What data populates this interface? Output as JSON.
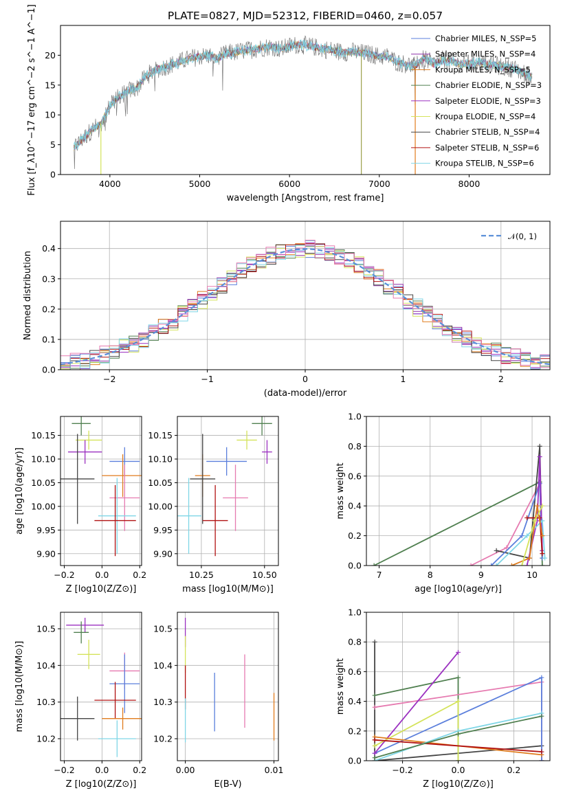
{
  "colors": {
    "chabrier_miles": "#5b7fdc",
    "salpeter_miles": "#8e2fa8",
    "kroupa_miles": "#e07b1c",
    "chabrier_elodie": "#4f7f4f",
    "salpeter_elodie": "#9b30c0",
    "kroupa_elodie": "#d4e35a",
    "chabrier_stelib": "#444444",
    "salpeter_stelib": "#b01010",
    "kroupa_stelib": "#7fd6e6",
    "pink": "#e67ab0",
    "normal": "#5b8fd8"
  },
  "chart_data": [
    {
      "id": "spectrum",
      "type": "line",
      "title": "PLATE=0827, MJD=52312, FIBERID=0460, z=0.057",
      "xlabel": "wavelength [Angstrom, rest frame]",
      "ylabel": "Flux [f_λ10^−17 erg cm^−2 s^−1 A^−1]",
      "xlim": [
        3450,
        8900
      ],
      "ylim": [
        0,
        25
      ],
      "xticks": [
        4000,
        5000,
        6000,
        7000,
        8000
      ],
      "yticks": [
        0,
        5,
        10,
        15,
        20
      ],
      "legend_position": "top-right",
      "legend": [
        {
          "label": "Chabrier MILES, N_SSP=5",
          "color": "#5b7fdc"
        },
        {
          "label": "Salpeter MILES, N_SSP=4",
          "color": "#8e2fa8"
        },
        {
          "label": "Kroupa MILES, N_SSP=5",
          "color": "#e07b1c"
        },
        {
          "label": "Chabrier ELODIE, N_SSP=3",
          "color": "#4f7f4f"
        },
        {
          "label": "Salpeter ELODIE, N_SSP=3",
          "color": "#9b30c0"
        },
        {
          "label": "Kroupa ELODIE, N_SSP=4",
          "color": "#d4e35a"
        },
        {
          "label": "Chabrier STELIB, N_SSP=4",
          "color": "#444444"
        },
        {
          "label": "Salpeter STELIB, N_SSP=6",
          "color": "#b01010"
        },
        {
          "label": "Kroupa STELIB, N_SSP=6",
          "color": "#7fd6e6"
        }
      ],
      "continuum": [
        [
          3600,
          4.5
        ],
        [
          3700,
          6.0
        ],
        [
          3800,
          7.5
        ],
        [
          3900,
          8.5
        ],
        [
          4000,
          11.5
        ],
        [
          4100,
          13.0
        ],
        [
          4200,
          14.0
        ],
        [
          4300,
          14.5
        ],
        [
          4400,
          16.5
        ],
        [
          4500,
          17.5
        ],
        [
          4600,
          18.0
        ],
        [
          4700,
          18.5
        ],
        [
          4800,
          19.0
        ],
        [
          4900,
          19.5
        ],
        [
          5000,
          19.8
        ],
        [
          5100,
          20.0
        ],
        [
          5200,
          19.5
        ],
        [
          5300,
          20.3
        ],
        [
          5400,
          20.5
        ],
        [
          5500,
          20.8
        ],
        [
          5600,
          21.0
        ],
        [
          5700,
          21.3
        ],
        [
          5800,
          21.5
        ],
        [
          5900,
          21.0
        ],
        [
          6000,
          21.5
        ],
        [
          6100,
          21.8
        ],
        [
          6200,
          21.6
        ],
        [
          6300,
          21.3
        ],
        [
          6400,
          21.0
        ],
        [
          6500,
          20.8
        ],
        [
          6600,
          20.5
        ],
        [
          6700,
          20.6
        ],
        [
          6800,
          20.4
        ],
        [
          6900,
          20.2
        ],
        [
          7000,
          19.8
        ],
        [
          7100,
          19.8
        ],
        [
          7200,
          18.8
        ],
        [
          7300,
          18.5
        ],
        [
          7400,
          18.2
        ],
        [
          7500,
          19.5
        ],
        [
          7600,
          18.5
        ],
        [
          7700,
          19.2
        ],
        [
          7800,
          19.0
        ],
        [
          7900,
          18.5
        ],
        [
          8000,
          18.6
        ],
        [
          8100,
          18.8
        ],
        [
          8200,
          18.5
        ],
        [
          8300,
          18.3
        ],
        [
          8400,
          18.0
        ],
        [
          8500,
          17.8
        ],
        [
          8600,
          17.0
        ],
        [
          8700,
          16.5
        ]
      ]
    },
    {
      "id": "residuals",
      "type": "histogram",
      "xlabel": "(data-model)/error",
      "ylabel": "Normed distribution",
      "xlim": [
        -2.5,
        2.5
      ],
      "ylim": [
        0,
        0.49
      ],
      "xticks": [
        -2,
        -1,
        0,
        1,
        2
      ],
      "yticks": [
        0.0,
        0.1,
        0.2,
        0.3,
        0.4
      ],
      "legend_position": "top-right",
      "legend": [
        {
          "label": "𝒩(0, 1)",
          "color": "#5b8fd8"
        }
      ]
    },
    {
      "id": "age-vs-Z",
      "type": "scatter",
      "xlabel": "Z [log10(Z/Z⊙)]",
      "ylabel": "age  [log10(age/yr)]",
      "xlim": [
        -0.22,
        0.21
      ],
      "ylim": [
        9.875,
        10.19
      ],
      "xticks": [
        -0.2,
        0.0,
        0.2
      ],
      "xticklabels": [
        "−0.2",
        "0.0",
        "0.2"
      ],
      "yticks": [
        9.9,
        9.95,
        10.0,
        10.05,
        10.1,
        10.15
      ],
      "yticklabels": [
        "9.90",
        "9.95",
        "10.00",
        "10.05",
        "10.10",
        "10.15"
      ],
      "points": [
        {
          "x": -0.11,
          "xerr": 0.05,
          "y": 10.175,
          "yerr": 0.025,
          "color": "#4f7f4f"
        },
        {
          "x": -0.07,
          "xerr": 0.07,
          "y": 10.14,
          "yerr": 0.02,
          "color": "#d4e35a"
        },
        {
          "x": -0.09,
          "xerr": 0.09,
          "y": 10.115,
          "yerr": 0.025,
          "color": "#9b30c0"
        },
        {
          "x": 0.12,
          "xerr": 0.08,
          "y": 10.095,
          "yerr": 0.03,
          "color": "#5b7fdc"
        },
        {
          "x": 0.11,
          "xerr": 0.11,
          "y": 10.065,
          "yerr": 0.045,
          "color": "#e07b1c"
        },
        {
          "x": -0.13,
          "xerr": 0.09,
          "y": 10.058,
          "yerr": 0.095,
          "color": "#444444"
        },
        {
          "x": 0.12,
          "xerr": 0.08,
          "y": 10.018,
          "yerr": 0.07,
          "color": "#e67ab0"
        },
        {
          "x": 0.08,
          "xerr": 0.1,
          "y": 9.98,
          "yerr": 0.08,
          "color": "#7fd6e6"
        },
        {
          "x": 0.07,
          "xerr": 0.11,
          "y": 9.97,
          "yerr": 0.075,
          "color": "#b01010"
        }
      ]
    },
    {
      "id": "age-vs-mass",
      "type": "scatter",
      "xlabel": "mass [log10(M/M⊙)]",
      "ylabel": "",
      "xlim": [
        10.155,
        10.555
      ],
      "ylim": [
        9.875,
        10.19
      ],
      "xticks": [
        10.25,
        10.5
      ],
      "xticklabels": [
        "10.25",
        "10.50"
      ],
      "yticks": [
        9.9,
        9.95,
        10.0,
        10.05,
        10.1,
        10.15
      ],
      "yticklabels": [
        "9.90",
        "9.95",
        "10.00",
        "10.05",
        "10.10",
        "10.15"
      ],
      "points": [
        {
          "x": 10.49,
          "xerr": 0.04,
          "y": 10.175,
          "yerr": 0.025,
          "color": "#4f7f4f"
        },
        {
          "x": 10.43,
          "xerr": 0.04,
          "y": 10.14,
          "yerr": 0.02,
          "color": "#d4e35a"
        },
        {
          "x": 10.51,
          "xerr": 0.02,
          "y": 10.115,
          "yerr": 0.025,
          "color": "#9b30c0"
        },
        {
          "x": 10.35,
          "xerr": 0.08,
          "y": 10.095,
          "yerr": 0.03,
          "color": "#5b7fdc"
        },
        {
          "x": 10.255,
          "xerr": 0.03,
          "y": 10.065,
          "yerr": 0.045,
          "color": "#e07b1c"
        },
        {
          "x": 10.255,
          "xerr": 0.05,
          "y": 10.058,
          "yerr": 0.095,
          "color": "#444444"
        },
        {
          "x": 10.385,
          "xerr": 0.05,
          "y": 10.018,
          "yerr": 0.07,
          "color": "#e67ab0"
        },
        {
          "x": 10.2,
          "xerr": 0.05,
          "y": 9.98,
          "yerr": 0.08,
          "color": "#7fd6e6"
        },
        {
          "x": 10.305,
          "xerr": 0.05,
          "y": 9.97,
          "yerr": 0.075,
          "color": "#b01010"
        }
      ]
    },
    {
      "id": "weight-vs-age",
      "type": "line",
      "xlabel": "age  [log10(age/yr)]",
      "ylabel": "mass weight",
      "xlim": [
        6.75,
        10.35
      ],
      "ylim": [
        0,
        1
      ],
      "xticks": [
        7,
        8,
        9,
        10
      ],
      "yticks": [
        0.0,
        0.2,
        0.4,
        0.6,
        0.8,
        1.0
      ],
      "yticklabels": [
        "0.0",
        "0.2",
        "0.4",
        "0.6",
        "0.8",
        "1.0"
      ],
      "series": [
        {
          "color": "#4f7f4f",
          "points": [
            [
              6.9,
              0.0
            ],
            [
              10.15,
              0.56
            ],
            [
              10.2,
              0.0
            ]
          ]
        },
        {
          "color": "#e67ab0",
          "points": [
            [
              8.8,
              0.0
            ],
            [
              9.5,
              0.12
            ],
            [
              10.15,
              0.55
            ],
            [
              10.2,
              0.1
            ]
          ]
        },
        {
          "color": "#444444",
          "points": [
            [
              9.3,
              0.1
            ],
            [
              9.95,
              0.05
            ],
            [
              10.15,
              0.8
            ],
            [
              10.2,
              0.05
            ]
          ]
        },
        {
          "color": "#5b7fdc",
          "points": [
            [
              9.2,
              0.0
            ],
            [
              9.8,
              0.2
            ],
            [
              10.15,
              0.55
            ],
            [
              10.2,
              0.05
            ]
          ]
        },
        {
          "color": "#9b30c0",
          "points": [
            [
              9.9,
              0.0
            ],
            [
              10.1,
              0.3
            ],
            [
              10.15,
              0.73
            ],
            [
              10.2,
              0.1
            ]
          ]
        },
        {
          "color": "#7fd6e6",
          "points": [
            [
              9.3,
              0.0
            ],
            [
              9.9,
              0.2
            ],
            [
              10.2,
              0.3
            ],
            [
              10.25,
              0.05
            ]
          ]
        },
        {
          "color": "#b01010",
          "points": [
            [
              9.9,
              0.32
            ],
            [
              10.15,
              0.32
            ],
            [
              10.2,
              0.08
            ]
          ]
        },
        {
          "color": "#e07b1c",
          "points": [
            [
              9.6,
              0.0
            ],
            [
              9.95,
              0.05
            ],
            [
              10.1,
              0.4
            ],
            [
              10.2,
              0.2
            ]
          ]
        },
        {
          "color": "#d4e35a",
          "points": [
            [
              9.8,
              0.0
            ],
            [
              10.05,
              0.3
            ],
            [
              10.2,
              0.4
            ]
          ]
        }
      ]
    },
    {
      "id": "mass-vs-Z",
      "type": "scatter",
      "xlabel": "Z [log10(Z/Z⊙)]",
      "ylabel": "mass [log10(M/M⊙)]",
      "xlim": [
        -0.22,
        0.21
      ],
      "ylim": [
        10.14,
        10.545
      ],
      "xticks": [
        -0.2,
        0.0,
        0.2
      ],
      "xticklabels": [
        "−0.2",
        "0.0",
        "0.2"
      ],
      "yticks": [
        10.2,
        10.3,
        10.4,
        10.5
      ],
      "yticklabels": [
        "10.2",
        "10.3",
        "10.4",
        "10.5"
      ],
      "points": [
        {
          "x": -0.09,
          "xerr": 0.1,
          "y": 10.51,
          "yerr": 0.02,
          "color": "#9b30c0"
        },
        {
          "x": -0.11,
          "xerr": 0.04,
          "y": 10.49,
          "yerr": 0.03,
          "color": "#4f7f4f"
        },
        {
          "x": -0.07,
          "xerr": 0.06,
          "y": 10.43,
          "yerr": 0.04,
          "color": "#d4e35a"
        },
        {
          "x": 0.12,
          "xerr": 0.08,
          "y": 10.385,
          "yerr": 0.05,
          "color": "#e67ab0"
        },
        {
          "x": 0.12,
          "xerr": 0.08,
          "y": 10.35,
          "yerr": 0.08,
          "color": "#5b7fdc"
        },
        {
          "x": 0.07,
          "xerr": 0.11,
          "y": 10.305,
          "yerr": 0.05,
          "color": "#b01010"
        },
        {
          "x": -0.13,
          "xerr": 0.09,
          "y": 10.255,
          "yerr": 0.06,
          "color": "#444444"
        },
        {
          "x": 0.11,
          "xerr": 0.11,
          "y": 10.255,
          "yerr": 0.03,
          "color": "#e07b1c"
        },
        {
          "x": 0.08,
          "xerr": 0.1,
          "y": 10.2,
          "yerr": 0.05,
          "color": "#7fd6e6"
        }
      ]
    },
    {
      "id": "mass-vs-ebv",
      "type": "scatter",
      "xlabel": "E(B-V)",
      "ylabel": "",
      "xlim": [
        -0.0009,
        0.0105
      ],
      "ylim": [
        10.14,
        10.545
      ],
      "xticks": [
        0.0,
        0.01
      ],
      "xticklabels": [
        "0.00",
        "0.01"
      ],
      "yticks": [
        10.2,
        10.3,
        10.4,
        10.5
      ],
      "yticklabels": [
        "10.2",
        "10.3",
        "10.4",
        "10.5"
      ],
      "points": [
        {
          "x": 0.0,
          "xerr": 0,
          "y": 10.49,
          "yerr": 0.04,
          "color": "#9b30c0"
        },
        {
          "x": 0.0,
          "xerr": 0,
          "y": 10.43,
          "yerr": 0.05,
          "color": "#d4e35a"
        },
        {
          "x": 0.0,
          "xerr": 0,
          "y": 10.34,
          "yerr": 0.06,
          "color": "#b01010"
        },
        {
          "x": 0.0,
          "xerr": 0,
          "y": 10.25,
          "yerr": 0.06,
          "color": "#7fd6e6"
        },
        {
          "x": 0.0033,
          "xerr": 0,
          "y": 10.3,
          "yerr": 0.08,
          "color": "#5b7fdc"
        },
        {
          "x": 0.0067,
          "xerr": 0,
          "y": 10.33,
          "yerr": 0.1,
          "color": "#e67ab0"
        },
        {
          "x": 0.01,
          "xerr": 0,
          "y": 10.26,
          "yerr": 0.065,
          "color": "#e07b1c"
        }
      ]
    },
    {
      "id": "weight-vs-Z",
      "type": "line",
      "xlabel": "Z [log10(Z/Z⊙)]",
      "ylabel": "mass weight",
      "xlim": [
        -0.33,
        0.33
      ],
      "ylim": [
        0,
        1
      ],
      "xticks": [
        -0.2,
        0.0,
        0.2
      ],
      "xticklabels": [
        "−0.2",
        "0.0",
        "0.2"
      ],
      "yticks": [
        0.0,
        0.2,
        0.4,
        0.6,
        0.8,
        1.0
      ],
      "yticklabels": [
        "0.0",
        "0.2",
        "0.4",
        "0.6",
        "0.8",
        "1.0"
      ],
      "series": [
        {
          "color": "#444444",
          "points": [
            [
              -0.3,
              0.8
            ],
            [
              -0.3,
              0.0
            ],
            [
              0.3,
              0.1
            ],
            [
              0.3,
              0.0
            ]
          ]
        },
        {
          "color": "#4f7f4f",
          "points": [
            [
              -0.3,
              0.44
            ],
            [
              0.0,
              0.56
            ],
            [
              0.0,
              0.0
            ]
          ]
        },
        {
          "color": "#e67ab0",
          "points": [
            [
              -0.3,
              0.36
            ],
            [
              0.3,
              0.53
            ],
            [
              0.3,
              0.0
            ]
          ]
        },
        {
          "color": "#5b7fdc",
          "points": [
            [
              -0.3,
              0.05
            ],
            [
              0.3,
              0.56
            ],
            [
              0.3,
              0.0
            ]
          ]
        },
        {
          "color": "#9b30c0",
          "points": [
            [
              -0.3,
              0.05
            ],
            [
              0.0,
              0.73
            ]
          ]
        },
        {
          "color": "#d4e35a",
          "points": [
            [
              -0.3,
              0.1
            ],
            [
              0.0,
              0.4
            ],
            [
              0.0,
              0.0
            ]
          ]
        },
        {
          "color": "#e07b1c",
          "points": [
            [
              -0.3,
              0.16
            ],
            [
              0.3,
              0.04
            ]
          ]
        },
        {
          "color": "#b01010",
          "points": [
            [
              -0.3,
              0.14
            ],
            [
              0.3,
              0.06
            ]
          ]
        },
        {
          "color": "#7fd6e6",
          "points": [
            [
              -0.3,
              0.0
            ],
            [
              0.0,
              0.2
            ],
            [
              0.3,
              0.32
            ]
          ]
        },
        {
          "color": "#4f7f4f",
          "points": [
            [
              -0.3,
              0.02
            ],
            [
              0.0,
              0.18
            ],
            [
              0.3,
              0.3
            ]
          ]
        }
      ]
    }
  ]
}
